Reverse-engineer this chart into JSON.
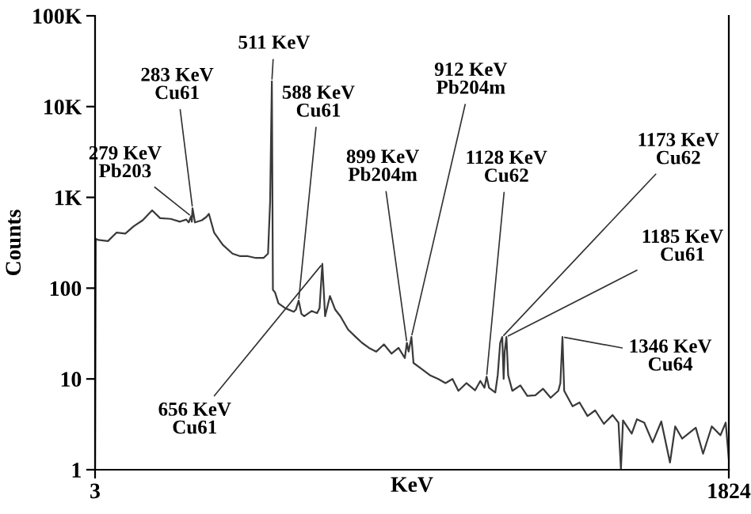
{
  "chart_data": {
    "type": "line",
    "xlabel": "KeV",
    "ylabel": "Counts",
    "log": "y",
    "grid": false,
    "legend": false,
    "marker": "none",
    "line_style": "solid",
    "xlim": [
      3,
      1824
    ],
    "xticks": [
      3,
      1824
    ],
    "ylim": [
      1,
      100000
    ],
    "yticks": [
      1,
      10,
      100,
      {
        "value": 1000,
        "label": "1K"
      },
      {
        "value": 10000,
        "label": "10K"
      },
      {
        "value": 100000,
        "label": "100K"
      }
    ],
    "series": [
      {
        "color": "#3a3a3a",
        "x": [
          3,
          5,
          12,
          40,
          65,
          90,
          114,
          140,
          167,
          190,
          220,
          247,
          265,
          272,
          279,
          281,
          283,
          290,
          310,
          323,
          330,
          345,
          370,
          398,
          420,
          442,
          465,
          487,
          500,
          506,
          511,
          514,
          520,
          530,
          550,
          574,
          580,
          588,
          596,
          604,
          625,
          641,
          648,
          656,
          664,
          678,
          693,
          708,
          730,
          752,
          770,
          790,
          811,
          833,
          855,
          875,
          893,
          899,
          904,
          912,
          918,
          940,
          965,
          989,
          1010,
          1030,
          1047,
          1070,
          1095,
          1110,
          1122,
          1128,
          1135,
          1153,
          1160,
          1167,
          1173,
          1177,
          1180,
          1185,
          1190,
          1202,
          1225,
          1245,
          1268,
          1290,
          1312,
          1334,
          1340,
          1346,
          1351,
          1375,
          1395,
          1418,
          1440,
          1465,
          1490,
          1507,
          1514,
          1520,
          1545,
          1560,
          1581,
          1605,
          1630,
          1655,
          1670,
          1690,
          1729,
          1750,
          1775,
          1800,
          1815,
          1824
        ],
        "values": [
          1,
          350,
          340,
          330,
          410,
          400,
          480,
          560,
          720,
          590,
          580,
          540,
          570,
          530,
          620,
          540,
          760,
          530,
          560,
          610,
          660,
          410,
          300,
          240,
          225,
          225,
          215,
          215,
          240,
          900,
          19000,
          96,
          90,
          68,
          60,
          55,
          58,
          73,
          52,
          49,
          56,
          53,
          60,
          185,
          49,
          82,
          58,
          49,
          35,
          29,
          25,
          22,
          20,
          24,
          19,
          22,
          17,
          25,
          20,
          29,
          15,
          13,
          11,
          10,
          9,
          10,
          7.4,
          9,
          7.5,
          9.5,
          8,
          10.6,
          8,
          7.1,
          11,
          25,
          29,
          10,
          20,
          29,
          11,
          7.4,
          8.5,
          6.5,
          6.6,
          7.8,
          6.2,
          7.4,
          9,
          29,
          7.4,
          5,
          5.5,
          3.9,
          4.5,
          3.2,
          4,
          3.3,
          1,
          3.5,
          2.5,
          3.6,
          3.3,
          2,
          3.4,
          1.2,
          3,
          2.2,
          2.9,
          1.5,
          3,
          2.4,
          3.3,
          1.3
        ]
      }
    ],
    "annotations": [
      {
        "text": "511 KeV",
        "x": 511,
        "y": 19000
      },
      {
        "text": "283 KeV\nCu61",
        "x": 283,
        "y": 760
      },
      {
        "text": "279 KeV\nPb203",
        "x": 279,
        "y": 620
      },
      {
        "text": "588 KeV\nCu61",
        "x": 588,
        "y": 73
      },
      {
        "text": "656 KeV\nCu61",
        "x": 656,
        "y": 185
      },
      {
        "text": "899 KeV\nPb204m",
        "x": 899,
        "y": 25
      },
      {
        "text": "912 KeV\nPb204m",
        "x": 912,
        "y": 29
      },
      {
        "text": "1128 KeV\nCu62",
        "x": 1128,
        "y": 10.6
      },
      {
        "text": "1173 KeV\nCu62",
        "x": 1173,
        "y": 29
      },
      {
        "text": "1185 KeV\nCu61",
        "x": 1185,
        "y": 29
      },
      {
        "text": "1346 KeV\nCu64",
        "x": 1346,
        "y": 29
      }
    ]
  }
}
